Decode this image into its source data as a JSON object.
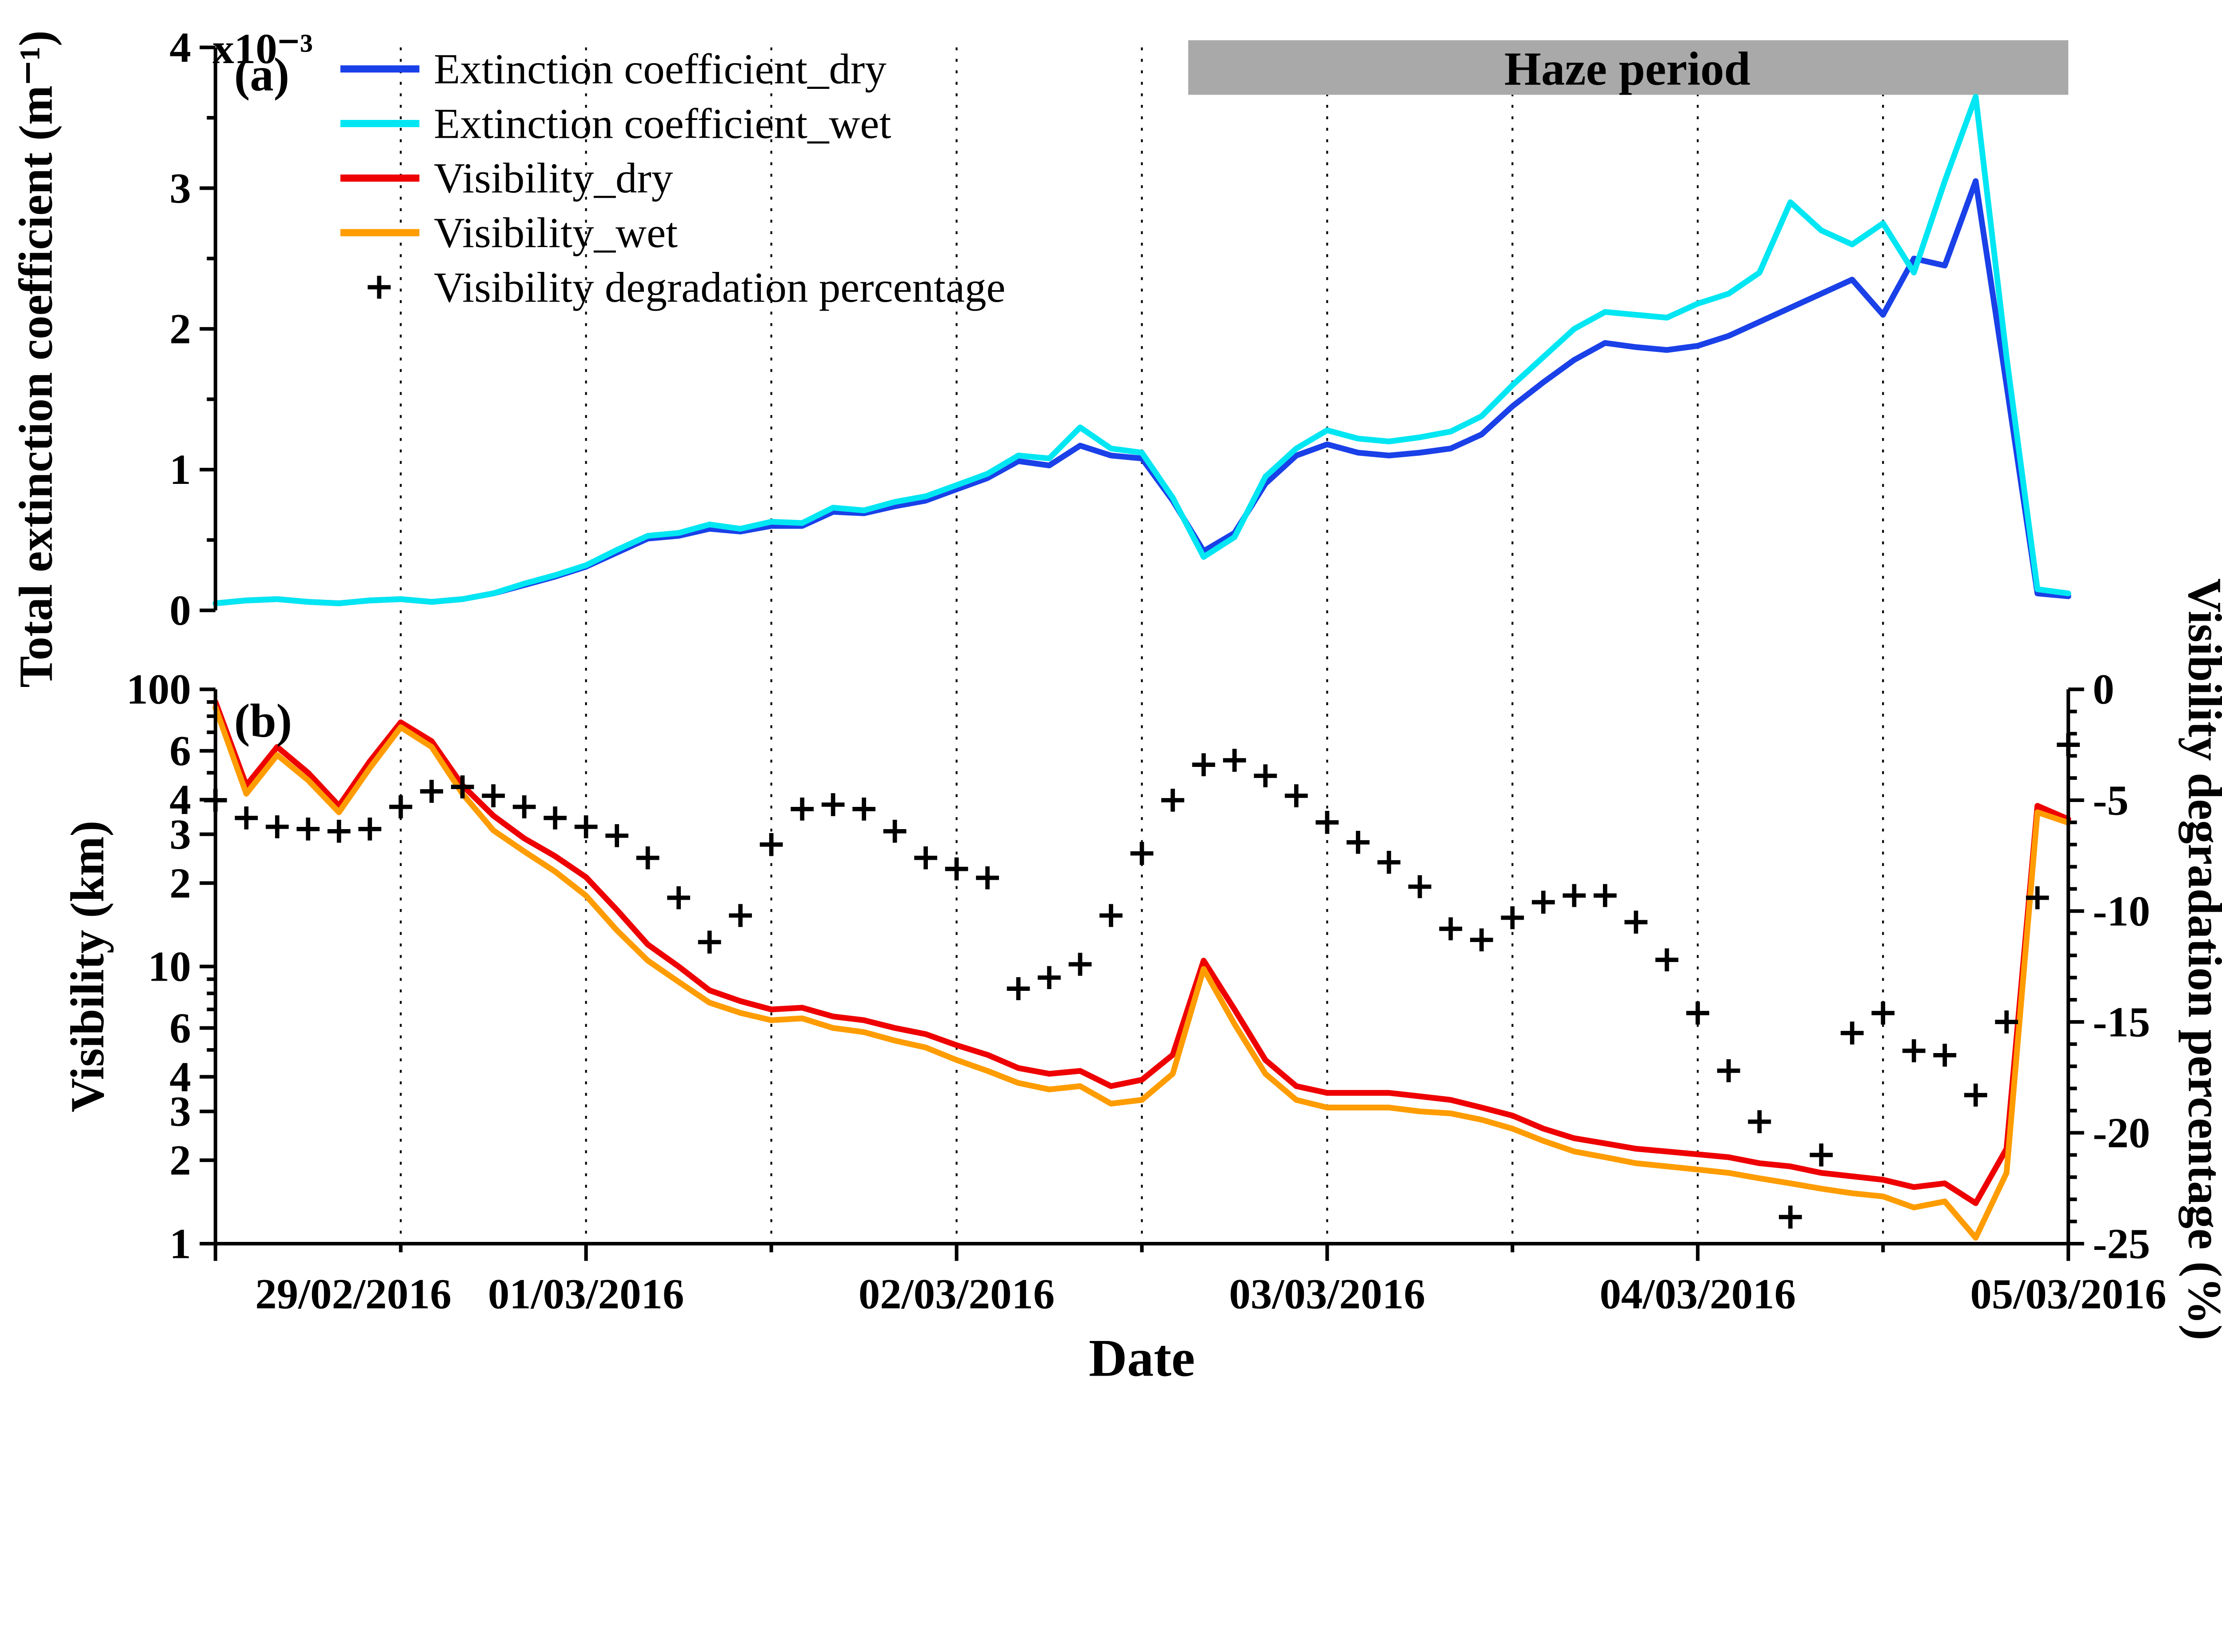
{
  "chart_data": {
    "type": "line",
    "x_unit": "hours since 29/02/2016 00:00",
    "x_step_hours": 2,
    "x_range_hours": [
      0,
      120
    ],
    "x_tick_hours": [
      0,
      24,
      48,
      72,
      96,
      120
    ],
    "x_tick_labels": [
      "29/02/2016",
      "01/03/2016",
      "02/03/2016",
      "03/03/2016",
      "04/03/2016",
      "05/03/2016"
    ],
    "grid_hours": [
      12,
      24,
      36,
      48,
      60,
      72,
      84,
      96,
      108
    ],
    "xlabel": "Date",
    "legend": [
      {
        "label": "Extinction coefficient_dry",
        "type": "line",
        "color": "#1a40e8"
      },
      {
        "label": "Extinction coefficient_wet",
        "type": "line",
        "color": "#00e6f2"
      },
      {
        "label": "Visibility_dry",
        "type": "line",
        "color": "#ee0000"
      },
      {
        "label": "Visibility_wet",
        "type": "line",
        "color": "#ff9c00"
      },
      {
        "label": "Visibility degradation percentage",
        "type": "marker",
        "color": "#000000"
      }
    ],
    "panel_a": {
      "label": "(a)",
      "ylabel": "Total extinction coefficient (m⁻¹)",
      "y_multiplier": "x10⁻³",
      "ylim": [
        0,
        4
      ],
      "yticks": [
        0,
        1,
        2,
        3,
        4
      ],
      "yticks_minor": [
        0.5,
        1.5,
        2.5,
        3.5
      ],
      "haze_band": {
        "label": "Haze period",
        "start_hour": 63,
        "end_hour": 120,
        "color": "#a9a9a9"
      },
      "series": [
        {
          "name": "Extinction coefficient_dry",
          "color": "#1a40e8",
          "values": [
            0.05,
            0.07,
            0.08,
            0.06,
            0.05,
            0.07,
            0.08,
            0.06,
            0.08,
            0.12,
            0.18,
            0.24,
            0.31,
            0.41,
            0.51,
            0.53,
            0.58,
            0.56,
            0.6,
            0.6,
            0.7,
            0.69,
            0.74,
            0.78,
            0.86,
            0.94,
            1.06,
            1.03,
            1.17,
            1.1,
            1.08,
            0.78,
            0.42,
            0.55,
            0.9,
            1.1,
            1.18,
            1.12,
            1.1,
            1.12,
            1.15,
            1.25,
            1.45,
            1.62,
            1.78,
            1.9,
            1.87,
            1.85,
            1.88,
            1.95,
            2.05,
            2.15,
            2.25,
            2.35,
            2.1,
            2.5,
            2.45,
            3.05,
            1.6,
            0.12,
            0.1
          ]
        },
        {
          "name": "Extinction coefficient_wet",
          "color": "#00e6f2",
          "values": [
            0.05,
            0.07,
            0.08,
            0.06,
            0.05,
            0.07,
            0.08,
            0.06,
            0.08,
            0.12,
            0.19,
            0.25,
            0.32,
            0.43,
            0.53,
            0.55,
            0.61,
            0.58,
            0.63,
            0.62,
            0.73,
            0.71,
            0.77,
            0.81,
            0.89,
            0.97,
            1.1,
            1.08,
            1.3,
            1.15,
            1.12,
            0.8,
            0.38,
            0.52,
            0.95,
            1.15,
            1.28,
            1.22,
            1.2,
            1.23,
            1.27,
            1.38,
            1.6,
            1.8,
            2.0,
            2.12,
            2.1,
            2.08,
            2.18,
            2.25,
            2.4,
            2.9,
            2.7,
            2.6,
            2.75,
            2.4,
            3.05,
            3.65,
            1.8,
            0.15,
            0.12
          ]
        }
      ]
    },
    "panel_b": {
      "label": "(b)",
      "ylabel_left": "Visibility (km)",
      "y_scale_left": "log",
      "ylim_left": [
        1,
        100
      ],
      "yticks_left": [
        {
          "v": 100,
          "label": "100"
        },
        {
          "v": 60,
          "label": "6"
        },
        {
          "v": 40,
          "label": "4"
        },
        {
          "v": 30,
          "label": "3"
        },
        {
          "v": 20,
          "label": "2"
        },
        {
          "v": 10,
          "label": "10"
        },
        {
          "v": 6,
          "label": "6"
        },
        {
          "v": 4,
          "label": "4"
        },
        {
          "v": 3,
          "label": "3"
        },
        {
          "v": 2,
          "label": "2"
        },
        {
          "v": 1,
          "label": "1"
        }
      ],
      "yticks_left_minor": [
        90,
        80,
        70,
        50,
        9,
        8,
        7,
        5
      ],
      "ylabel_right": "Visibility degradation percentage (%)",
      "ylim_right": [
        0,
        -25
      ],
      "yticks_right": [
        0,
        -5,
        -10,
        -15,
        -20,
        -25
      ],
      "series": [
        {
          "name": "Visibility_dry",
          "color": "#ee0000",
          "axis": "left",
          "values": [
            90,
            45,
            62,
            50,
            38,
            55,
            76,
            65,
            45,
            35,
            29,
            25,
            21,
            16,
            12,
            10,
            8.2,
            7.5,
            7.0,
            7.1,
            6.6,
            6.4,
            6.0,
            5.7,
            5.2,
            4.8,
            4.3,
            4.1,
            4.2,
            3.7,
            3.9,
            4.8,
            10.5,
            7.0,
            4.6,
            3.7,
            3.5,
            3.5,
            3.5,
            3.4,
            3.3,
            3.1,
            2.9,
            2.6,
            2.4,
            2.3,
            2.2,
            2.15,
            2.1,
            2.05,
            1.95,
            1.9,
            1.8,
            1.75,
            1.7,
            1.6,
            1.65,
            1.4,
            2.2,
            38,
            34
          ]
        },
        {
          "name": "Visibility_wet",
          "color": "#ff9c00",
          "axis": "left",
          "values": [
            86,
            42,
            58,
            47,
            36,
            52,
            73,
            62,
            42,
            31,
            26,
            22,
            18,
            13.5,
            10.5,
            8.8,
            7.4,
            6.8,
            6.4,
            6.5,
            6.0,
            5.8,
            5.4,
            5.1,
            4.6,
            4.2,
            3.8,
            3.6,
            3.7,
            3.2,
            3.3,
            4.1,
            9.8,
            6.2,
            4.1,
            3.3,
            3.1,
            3.1,
            3.1,
            3.0,
            2.95,
            2.8,
            2.6,
            2.35,
            2.15,
            2.05,
            1.95,
            1.9,
            1.85,
            1.8,
            1.72,
            1.65,
            1.58,
            1.52,
            1.48,
            1.35,
            1.42,
            1.05,
            1.8,
            36,
            33
          ]
        },
        {
          "name": "Visibility degradation percentage",
          "color": "#000000",
          "axis": "right",
          "marker": "+",
          "values": [
            -5.0,
            -5.8,
            -6.2,
            -6.3,
            -6.4,
            -6.3,
            -5.3,
            -4.6,
            -4.4,
            -4.8,
            -5.3,
            -5.8,
            -6.2,
            -6.6,
            -7.6,
            -9.4,
            -11.4,
            -10.2,
            -7.0,
            -5.4,
            -5.2,
            -5.4,
            -6.4,
            -7.6,
            -8.1,
            -8.5,
            -13.5,
            -13.0,
            -12.4,
            -10.2,
            -7.4,
            -5.0,
            -3.4,
            -3.2,
            -3.9,
            -4.8,
            -6.0,
            -6.9,
            -7.8,
            -8.9,
            -10.8,
            -11.3,
            -10.3,
            -9.6,
            -9.3,
            -9.3,
            -10.5,
            -12.2,
            -14.6,
            -17.2,
            -19.5,
            -23.8,
            -21.0,
            -15.5,
            -14.6,
            -16.3,
            -16.5,
            -18.3,
            -15.0,
            -9.4,
            -2.5
          ]
        }
      ]
    }
  }
}
